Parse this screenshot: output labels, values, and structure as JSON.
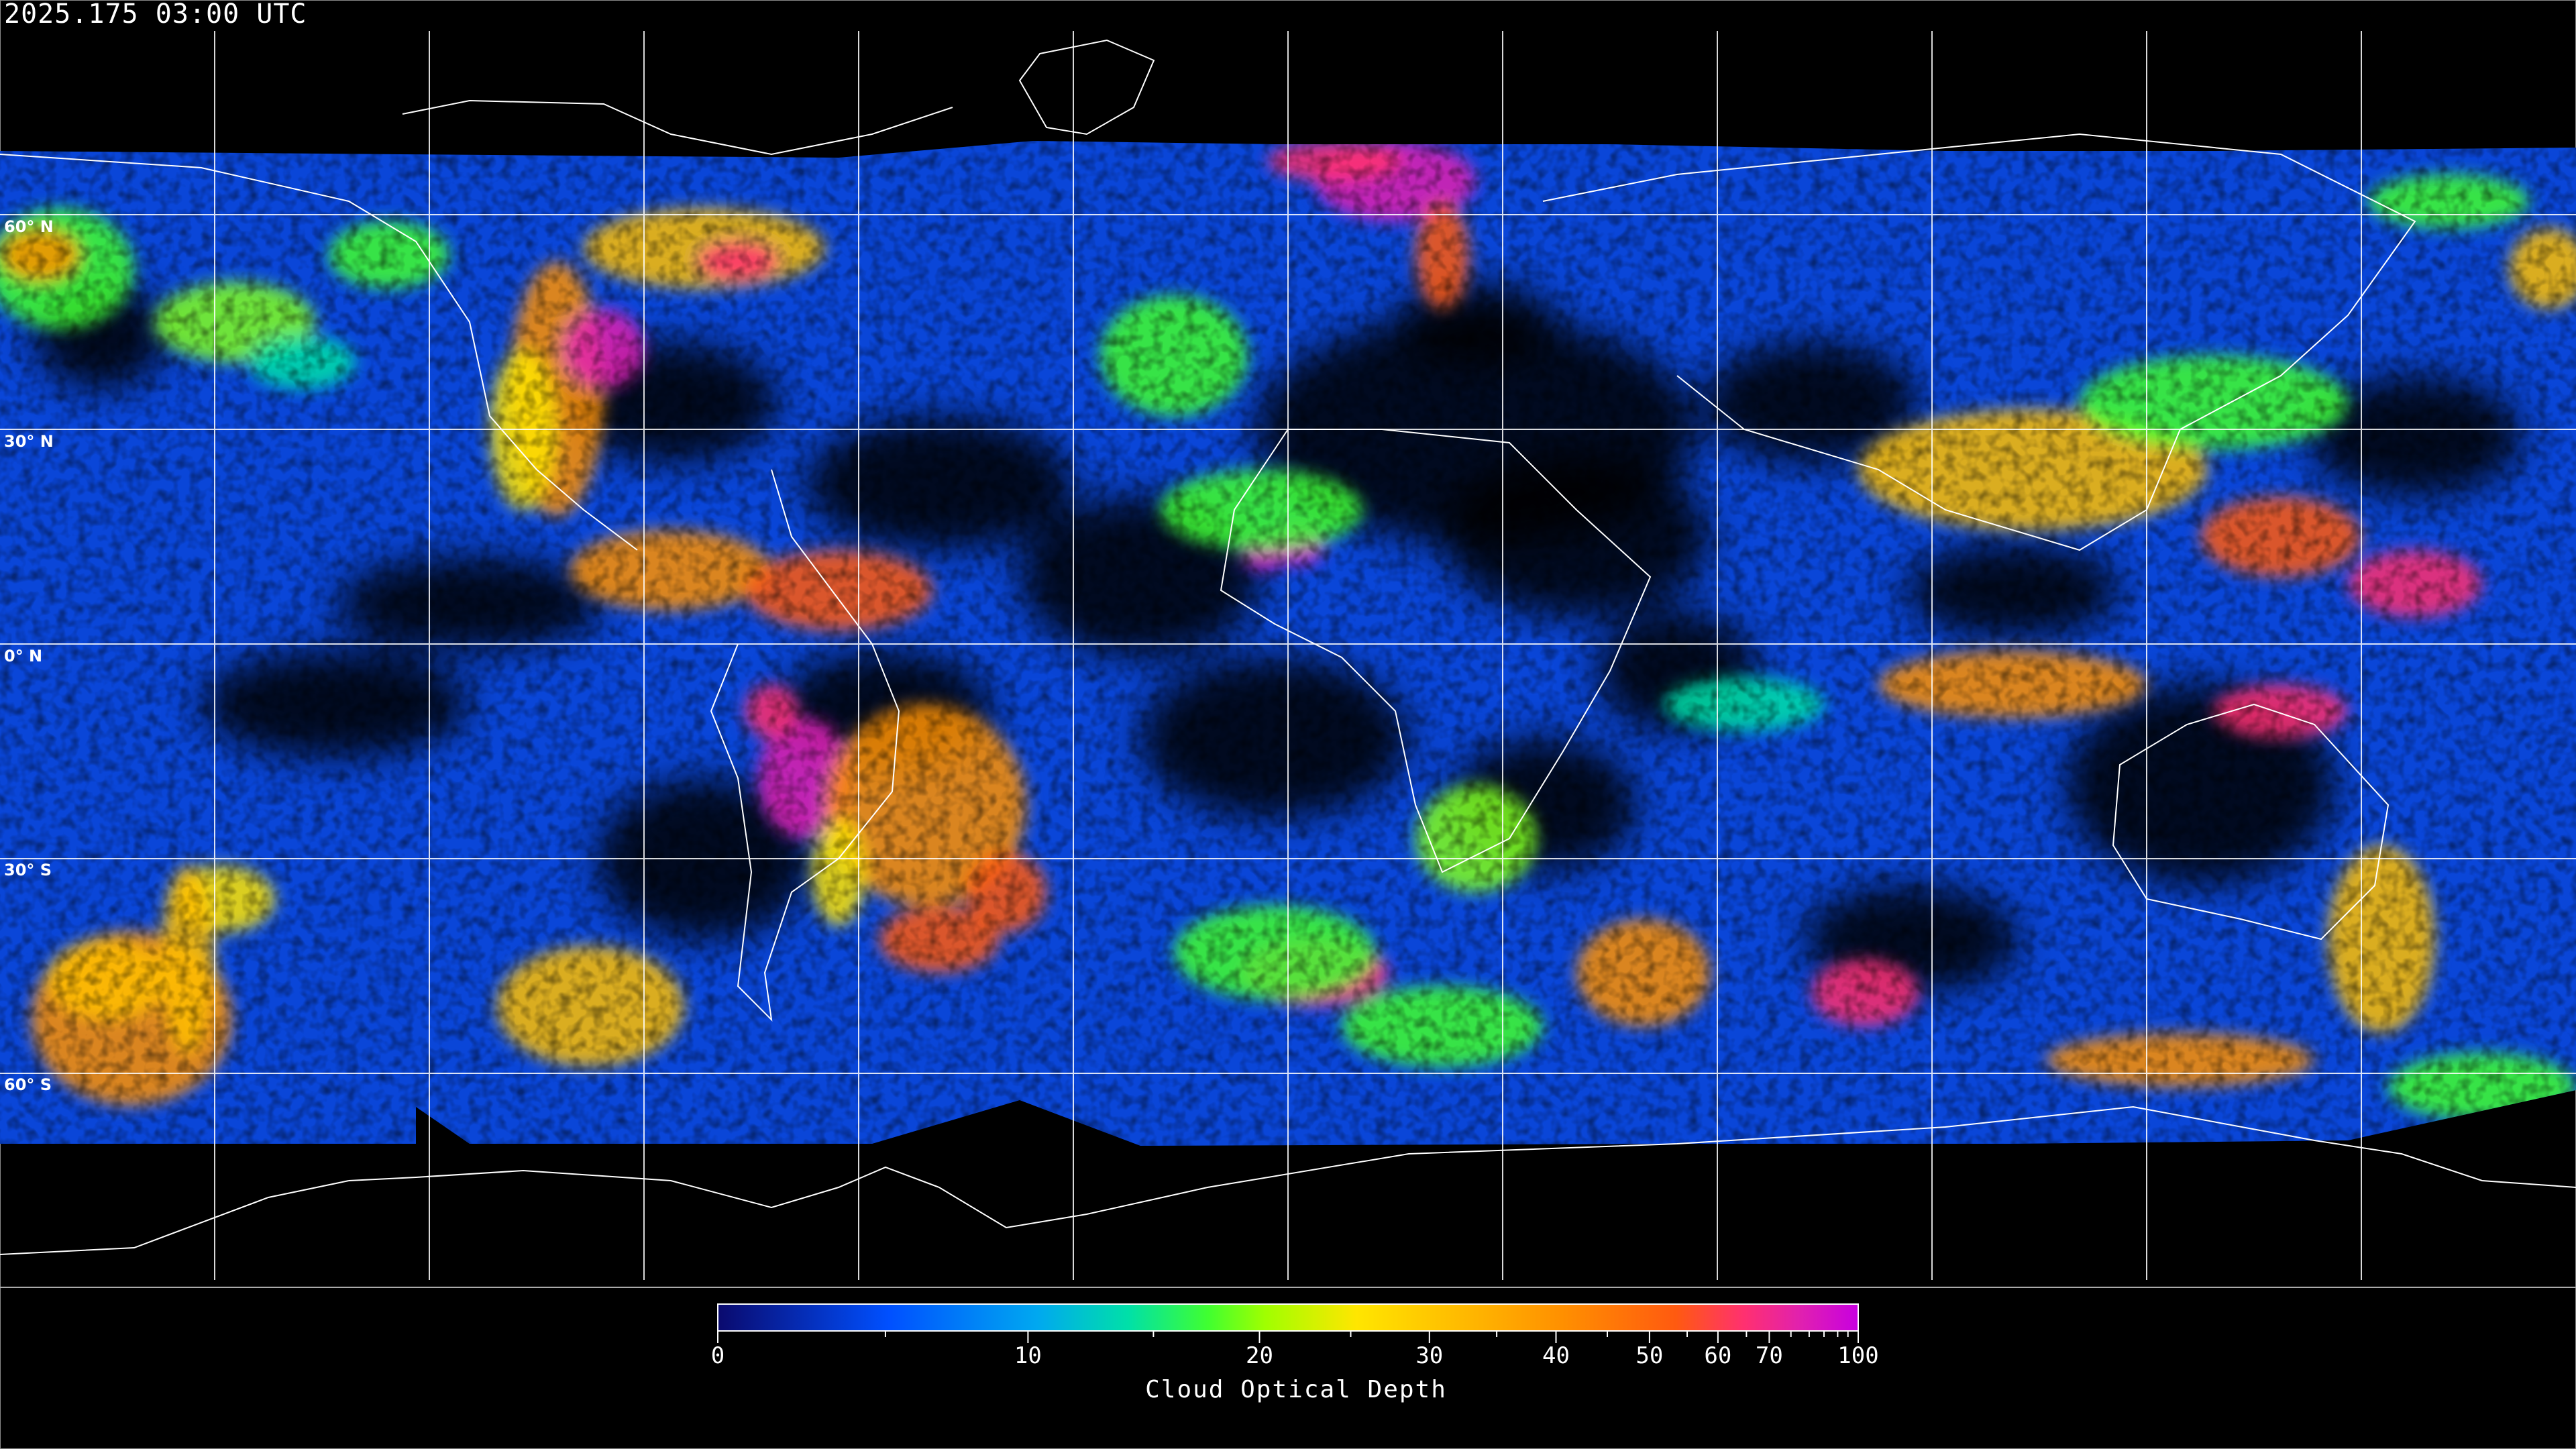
{
  "header": {
    "title": "2025.175 03:00 UTC"
  },
  "map": {
    "projection": "equirectangular",
    "grid_longitude_step_deg": 30,
    "lat_labels": [
      "60° N",
      "30° N",
      "0° N",
      "30° S",
      "60° S"
    ],
    "lat_values": [
      60,
      30,
      0,
      -30,
      -60
    ],
    "coastline_color": "#ffffff",
    "grid_color": "#ffffff",
    "no_data_color": "#000000"
  },
  "colorbar": {
    "label": "Cloud Optical Depth",
    "range": [
      0,
      100
    ],
    "ticks": [
      "0",
      "10",
      "20",
      "30",
      "40",
      "50",
      "60",
      "70",
      "100"
    ],
    "colors": [
      "#0a0a6e",
      "#0050ff",
      "#00a8f0",
      "#00e0a8",
      "#40ff30",
      "#a0ff00",
      "#ffe600",
      "#ffc000",
      "#ff9000",
      "#ff5a10",
      "#ff3070",
      "#e020b0",
      "#c800e0"
    ]
  }
}
